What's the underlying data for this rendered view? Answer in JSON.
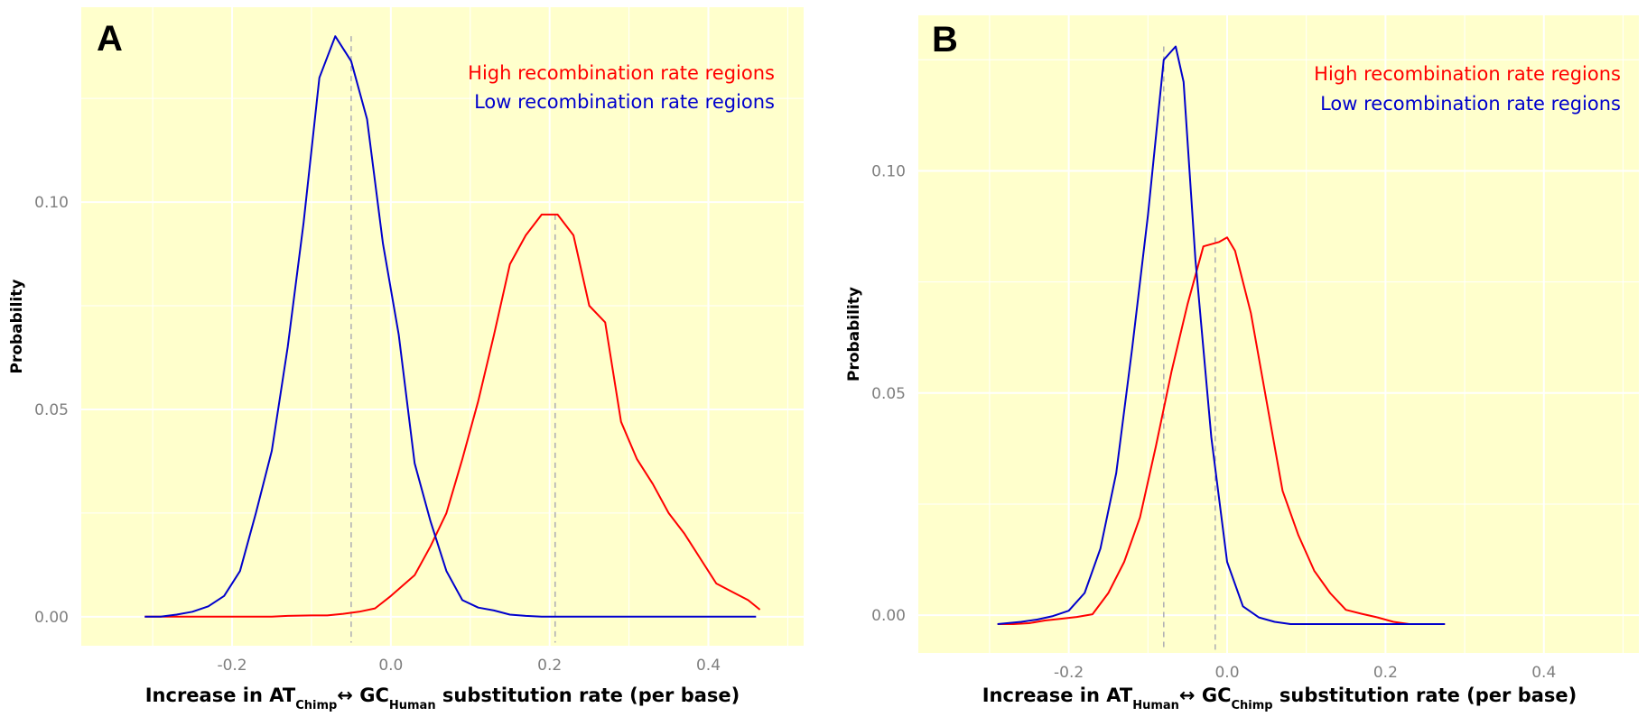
{
  "chart_data": [
    {
      "panel": "A",
      "type": "line",
      "ylabel": "Probability",
      "xlabel": {
        "before": "Increase in AT",
        "sub1": "Chimp",
        "middle": "GC",
        "sub2": "Human",
        "after": "substitution rate (per base)"
      },
      "xlim": [
        -0.39,
        0.52
      ],
      "ylim": [
        -0.007,
        0.147
      ],
      "xticks": [
        -0.2,
        0.0,
        0.2,
        0.4
      ],
      "xtick_labels": [
        "-0.2",
        "0.0",
        "0.2",
        "0.4"
      ],
      "yticks": [
        0.0,
        0.05,
        0.1
      ],
      "ytick_labels": [
        "0.00",
        "0.05",
        "0.10"
      ],
      "grid": true,
      "background": "#ffffcc",
      "legend_position": "top-right",
      "series": [
        {
          "name": "High recombination rate regions",
          "color": "#ff0000",
          "mode": -0.05,
          "median": 0.207,
          "x": [
            -0.31,
            -0.3,
            -0.25,
            -0.2,
            -0.15,
            -0.13,
            -0.1,
            -0.08,
            -0.06,
            -0.04,
            -0.02,
            0.0,
            0.03,
            0.05,
            0.07,
            0.09,
            0.11,
            0.13,
            0.15,
            0.17,
            0.19,
            0.21,
            0.23,
            0.25,
            0.27,
            0.29,
            0.31,
            0.33,
            0.35,
            0.37,
            0.39,
            0.41,
            0.43,
            0.45,
            0.465
          ],
          "y": [
            0.0,
            0.0,
            0.0,
            0.0,
            0.0,
            0.0002,
            0.0003,
            0.0003,
            0.0007,
            0.0012,
            0.002,
            0.005,
            0.01,
            0.017,
            0.025,
            0.038,
            0.052,
            0.068,
            0.085,
            0.092,
            0.097,
            0.097,
            0.092,
            0.075,
            0.071,
            0.047,
            0.038,
            0.032,
            0.025,
            0.02,
            0.014,
            0.008,
            0.006,
            0.004,
            0.0017
          ]
        },
        {
          "name": "Low recombination rate regions",
          "color": "#0000cc",
          "median": -0.05,
          "x": [
            -0.31,
            -0.29,
            -0.27,
            -0.25,
            -0.23,
            -0.21,
            -0.19,
            -0.17,
            -0.15,
            -0.13,
            -0.11,
            -0.09,
            -0.07,
            -0.05,
            -0.03,
            -0.01,
            0.01,
            0.03,
            0.05,
            0.07,
            0.09,
            0.11,
            0.13,
            0.15,
            0.17,
            0.19,
            0.21,
            0.25,
            0.3,
            0.35,
            0.4,
            0.46
          ],
          "y": [
            0.0,
            0.0,
            0.0005,
            0.0012,
            0.0025,
            0.005,
            0.011,
            0.025,
            0.04,
            0.065,
            0.095,
            0.13,
            0.14,
            0.134,
            0.12,
            0.09,
            0.068,
            0.037,
            0.023,
            0.011,
            0.004,
            0.0022,
            0.0015,
            0.0005,
            0.0002,
            0.0,
            0.0,
            0.0,
            0.0,
            0.0,
            0.0,
            0.0
          ]
        }
      ]
    },
    {
      "panel": "B",
      "type": "line",
      "ylabel": "Probability",
      "xlabel": {
        "before": "Increase in AT",
        "sub1": "Human",
        "middle": "GC",
        "sub2": "Chimp",
        "after": "substitution rate (per base)"
      },
      "xlim": [
        -0.39,
        0.52
      ],
      "ylim": [
        -0.0085,
        0.135
      ],
      "xticks": [
        -0.2,
        0.0,
        0.2,
        0.4
      ],
      "xtick_labels": [
        "-0.2",
        "0.0",
        "0.2",
        "0.4"
      ],
      "yticks": [
        0.0,
        0.05,
        0.1
      ],
      "ytick_labels": [
        "0.00",
        "0.05",
        "0.10"
      ],
      "grid": true,
      "background": "#ffffcc",
      "legend_position": "top-right",
      "series": [
        {
          "name": "High recombination rate regions",
          "color": "#ff0000",
          "median": -0.015,
          "x": [
            -0.29,
            -0.27,
            -0.25,
            -0.23,
            -0.21,
            -0.19,
            -0.17,
            -0.15,
            -0.13,
            -0.11,
            -0.09,
            -0.07,
            -0.05,
            -0.03,
            -0.01,
            0.0,
            0.01,
            0.03,
            0.05,
            0.07,
            0.09,
            0.11,
            0.13,
            0.15,
            0.17,
            0.19,
            0.21,
            0.23,
            0.25,
            0.275
          ],
          "y": [
            -0.002,
            -0.002,
            -0.0018,
            -0.0012,
            -0.0008,
            -0.0004,
            0.0002,
            0.005,
            0.012,
            0.022,
            0.038,
            0.055,
            0.07,
            0.083,
            0.084,
            0.085,
            0.082,
            0.068,
            0.048,
            0.028,
            0.018,
            0.01,
            0.005,
            0.0012,
            0.0003,
            -0.0005,
            -0.0015,
            -0.002,
            -0.002,
            -0.002
          ]
        },
        {
          "name": "Low recombination rate regions",
          "color": "#0000cc",
          "median": -0.08,
          "x": [
            -0.29,
            -0.26,
            -0.24,
            -0.22,
            -0.2,
            -0.18,
            -0.16,
            -0.14,
            -0.12,
            -0.1,
            -0.08,
            -0.065,
            -0.055,
            -0.04,
            -0.02,
            0.0,
            0.02,
            0.04,
            0.06,
            0.08,
            0.1,
            0.14,
            0.2,
            0.275
          ],
          "y": [
            -0.002,
            -0.0015,
            -0.001,
            -0.0002,
            0.001,
            0.005,
            0.015,
            0.032,
            0.06,
            0.09,
            0.125,
            0.128,
            0.12,
            0.08,
            0.04,
            0.012,
            0.002,
            -0.0005,
            -0.0015,
            -0.002,
            -0.002,
            -0.002,
            -0.002,
            -0.002
          ]
        }
      ]
    }
  ]
}
